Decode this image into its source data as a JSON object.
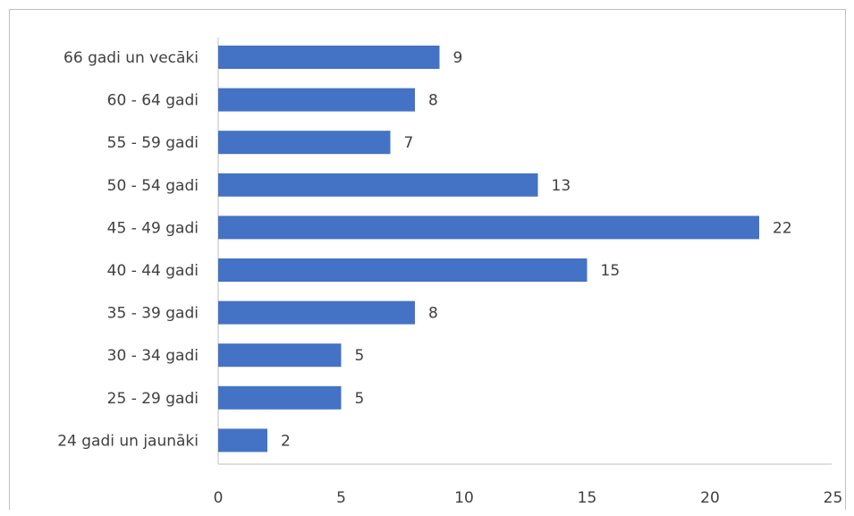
{
  "chart_data": {
    "type": "bar",
    "orientation": "horizontal",
    "categories": [
      "66 gadi un vecāki",
      "60 - 64 gadi",
      "55 - 59 gadi",
      "50 - 54 gadi",
      "45 - 49 gadi",
      "40 - 44 gadi",
      "35 - 39 gadi",
      "30 - 34 gadi",
      "25 - 29 gadi",
      "24 gadi un jaunāki"
    ],
    "values": [
      9,
      8,
      7,
      13,
      22,
      15,
      8,
      5,
      5,
      2
    ],
    "title": "",
    "xlabel": "",
    "ylabel": "",
    "xlim": [
      0,
      25
    ],
    "xticks": [
      0,
      5,
      10,
      15,
      20,
      25
    ],
    "data_labels": true,
    "grid": false,
    "legend": "none",
    "bar_color": "#4472C4"
  }
}
